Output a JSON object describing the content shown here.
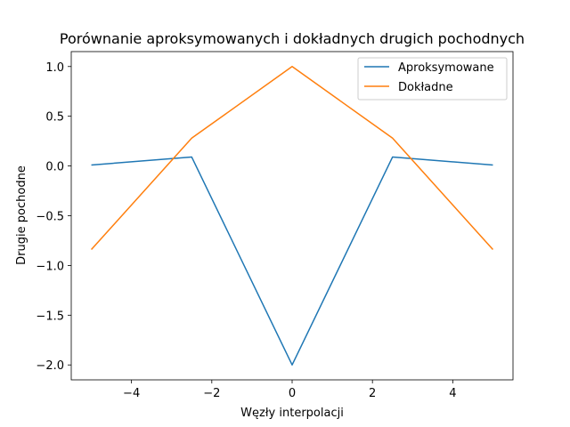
{
  "chart_data": {
    "type": "line",
    "title": "Porównanie aproksymowanych i dokładnych drugich pochodnych",
    "xlabel": "Węzły interpolacji",
    "ylabel": "Drugie pochodne",
    "xlim": [
      -5.5,
      5.5
    ],
    "ylim": [
      -2.15,
      1.15
    ],
    "xticks": [
      -4,
      -2,
      0,
      2,
      4
    ],
    "xtick_labels": [
      "−4",
      "−2",
      "0",
      "2",
      "4"
    ],
    "yticks": [
      -2.0,
      -1.5,
      -1.0,
      -0.5,
      0.0,
      0.5,
      1.0
    ],
    "ytick_labels": [
      "−2.0",
      "−1.5",
      "−1.0",
      "−0.5",
      "0.0",
      "0.5",
      "1.0"
    ],
    "grid": false,
    "legend_position": "top-right",
    "x": [
      -5,
      -2.5,
      0,
      2.5,
      5
    ],
    "series": [
      {
        "name": "Aproksymowane",
        "color": "#1f77b4",
        "values": [
          0.01,
          0.09,
          -2.0,
          0.09,
          0.01
        ]
      },
      {
        "name": "Dokładne",
        "color": "#ff7f0e",
        "values": [
          -0.84,
          0.28,
          1.0,
          0.28,
          -0.84
        ]
      }
    ]
  }
}
